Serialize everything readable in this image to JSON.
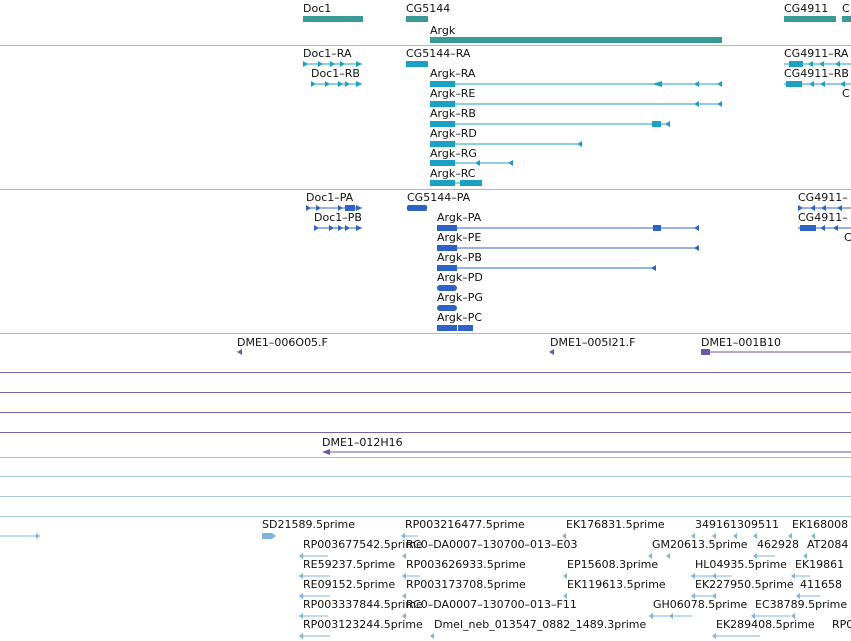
{
  "colors": {
    "gene": "#3a9a98",
    "transcript": "#1ba1c4",
    "protein": "#2c63c4",
    "clone": "#6f55a6",
    "clone_line": "#8a7cba",
    "gap_line": "#9ec7dc",
    "est": "#7fb4dc"
  },
  "genes": {
    "doc1": "Doc1",
    "cg5144": "CG5144",
    "cg4911": "CG4911",
    "cg_partial": "C",
    "argk": "Argk"
  },
  "transcripts": {
    "doc1_ra": "Doc1–RA",
    "doc1_rb": "Doc1–RB",
    "cg5144_ra": "CG5144–RA",
    "cg4911_ra": "CG4911–RA",
    "cg4911_rb": "CG4911–RB",
    "c_partial": "C",
    "argk_ra": "Argk–RA",
    "argk_re": "Argk–RE",
    "argk_rb": "Argk–RB",
    "argk_rd": "Argk–RD",
    "argk_rg": "Argk–RG",
    "argk_rc": "Argk–RC"
  },
  "proteins": {
    "doc1_pa": "Doc1–PA",
    "doc1_pb": "Doc1–PB",
    "cg5144_pa": "CG5144–PA",
    "cg4911_pa": "CG4911–",
    "cg4911_pb": "CG4911–",
    "c_partial": "C",
    "argk_pa": "Argk–PA",
    "argk_pe": "Argk–PE",
    "argk_pb": "Argk–PB",
    "argk_pd": "Argk–PD",
    "argk_pg": "Argk–PG",
    "argk_pc": "Argk–PC"
  },
  "clones": {
    "c1": "DME1–006O05.F",
    "c2": "DME1–005I21.F",
    "c3": "DME1–001B10",
    "c4": "DME1–012H16"
  },
  "ests": {
    "r0c1": "SD21589.5prime",
    "r0c2": "RP003216477.5prime",
    "r0c3": "EK176831.5prime",
    "r0c4": "349161309511",
    "r0c5": "EK168008",
    "r1c1": "RP003677542.5prime",
    "r1c2": "RC0–DA0007–130700–013–E03",
    "r1c3": "GM20613.5prime",
    "r1c4": "462928",
    "r1c5": "AT2084",
    "r2c1": "RE59237.5prime",
    "r2c2": "RP003626933.5prime",
    "r2c3": "EP15608.3prime",
    "r2c4": "HL04935.5prime",
    "r2c5": "EK19861",
    "r3c1": "RE09152.5prime",
    "r3c2": "RP003173708.5prime",
    "r3c3": "EK119613.5prime",
    "r3c4": "EK227950.5prime",
    "r3c5": "411658",
    "r4c1": "RP003337844.5prime",
    "r4c2": "RC0–DA0007–130700–013–F11",
    "r4c3": "GH06078.5prime",
    "r4c4": "EC38789.5prime",
    "r5c1": "RP003123244.5prime",
    "r5c2": "Dmel_neb_013547_0882_1489.3prime",
    "r5c3": "EK289408.5prime",
    "r5c4": "RP0"
  }
}
